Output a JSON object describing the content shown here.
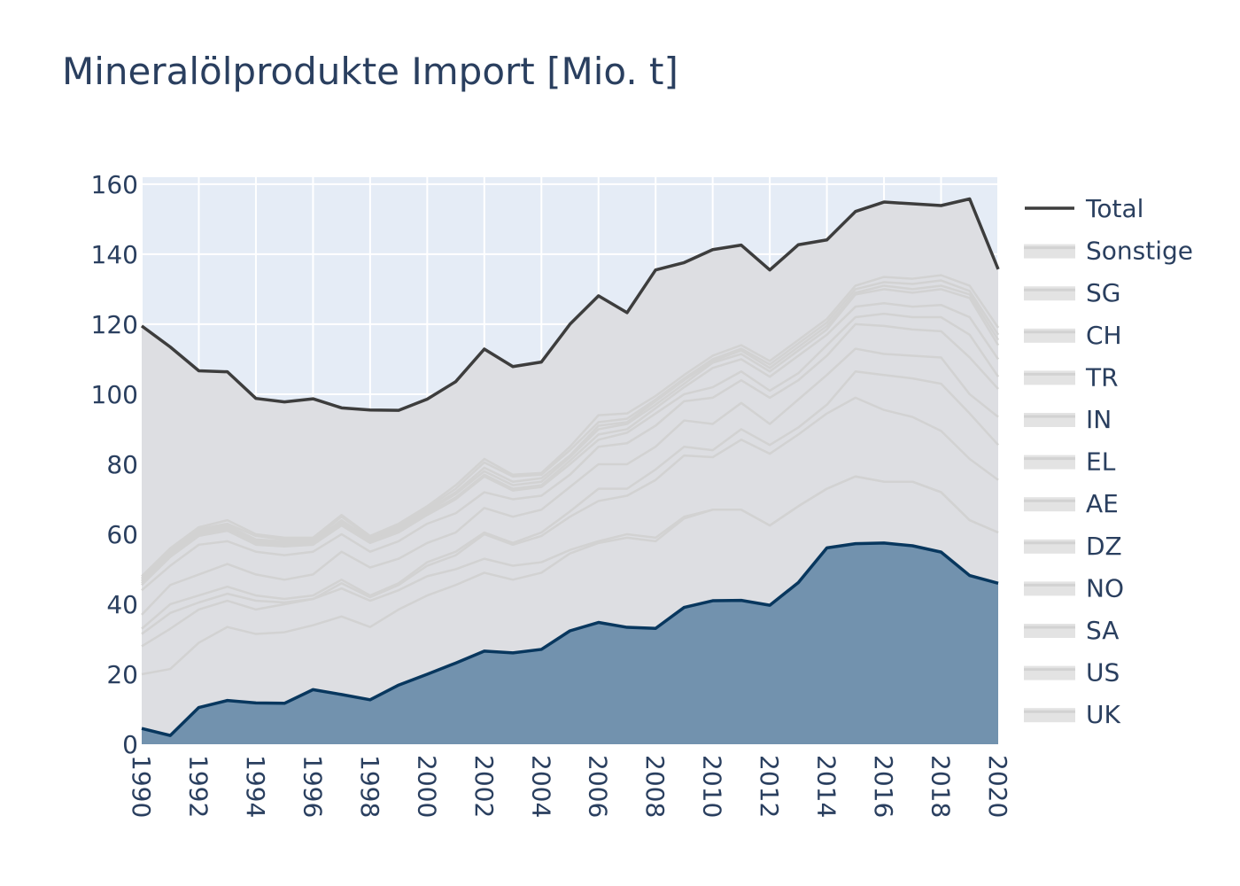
{
  "chart_data": {
    "type": "area",
    "title": "Mineralölprodukte Import [Mio. t]",
    "xlabel": "",
    "ylabel": "",
    "xlim": [
      1990,
      2020
    ],
    "ylim": [
      0,
      162
    ],
    "grid": true,
    "legend_position": "right",
    "x": [
      1990,
      1991,
      1992,
      1993,
      1994,
      1995,
      1996,
      1997,
      1998,
      1999,
      2000,
      2001,
      2002,
      2003,
      2004,
      2005,
      2006,
      2007,
      2008,
      2009,
      2010,
      2011,
      2012,
      2013,
      2014,
      2015,
      2016,
      2017,
      2018,
      2019,
      2020
    ],
    "x_tick_labels": [
      "1990",
      "1992",
      "1994",
      "1996",
      "1998",
      "2000",
      "2002",
      "2004",
      "2006",
      "2008",
      "2010",
      "2012",
      "2014",
      "2016",
      "2018",
      "2020"
    ],
    "y_tick_labels": [
      "0",
      "20",
      "40",
      "60",
      "80",
      "100",
      "120",
      "140",
      "160"
    ],
    "colors": {
      "total": "#3d3d3d",
      "uk_line": "#08375e",
      "uk_fill": "#7292ae",
      "stack_line": "#d2d2d2",
      "stack_fill": "#dddee2",
      "plot_bg": "#e5ecf6",
      "grid": "#ffffff"
    },
    "series": [
      {
        "name": "Total",
        "style": "line",
        "values": [
          119.5,
          113.5,
          106.7,
          106.4,
          98.8,
          97.8,
          98.7,
          96.1,
          95.5,
          95.4,
          98.6,
          103.6,
          112.9,
          107.9,
          109.2,
          120,
          128.1,
          123.3,
          135.5,
          137.6,
          141.3,
          142.6,
          135.5,
          142.7,
          144.1,
          152.2,
          154.9,
          154.4,
          153.9,
          155.8,
          135.7
        ]
      },
      {
        "name": "Sonstige",
        "style": "stacked",
        "values": [
          48,
          56,
          62,
          64,
          60,
          59,
          59,
          65.5,
          59.5,
          63,
          68,
          74,
          81.5,
          77,
          77.5,
          85,
          94,
          94.5,
          99.5,
          105.5,
          111,
          114,
          109.5,
          115.5,
          121.5,
          131,
          133.5,
          133,
          134,
          131,
          119
        ]
      },
      {
        "name": "SG",
        "style": "stacked",
        "values": [
          47.5,
          55.5,
          61.5,
          63,
          59.5,
          58.5,
          58.5,
          65,
          59,
          62.5,
          67.5,
          73,
          80.5,
          76.5,
          77,
          84,
          92,
          93,
          98.5,
          104.5,
          110,
          113,
          108.5,
          114.5,
          120.5,
          130,
          132,
          131.5,
          132.5,
          129.5,
          117
        ]
      },
      {
        "name": "CH",
        "style": "stacked",
        "values": [
          47,
          55,
          61,
          62.5,
          58.5,
          58,
          58,
          64,
          58.5,
          62,
          67,
          72,
          79,
          75,
          76,
          82.5,
          91,
          92,
          98,
          104,
          109.5,
          112.5,
          107.5,
          113.5,
          119.5,
          129,
          131,
          130,
          131,
          128.5,
          115.5
        ]
      },
      {
        "name": "TR",
        "style": "stacked",
        "values": [
          46.5,
          54.5,
          60.5,
          62,
          58,
          57.5,
          57.5,
          63.5,
          58,
          61.5,
          66.5,
          71.5,
          78,
          74,
          75,
          82,
          90,
          91.5,
          97,
          103,
          109,
          111.5,
          106.5,
          112.5,
          118.5,
          128.5,
          130,
          129,
          130,
          127.5,
          114
        ]
      },
      {
        "name": "IN",
        "style": "stacked",
        "values": [
          46,
          54,
          60,
          61.5,
          57.5,
          57,
          57.5,
          63,
          58,
          61,
          66,
          70.5,
          77,
          73,
          74,
          81,
          88.5,
          90,
          96,
          102,
          107.5,
          110,
          105,
          111,
          117,
          125,
          126,
          125,
          125.5,
          122,
          110
        ]
      },
      {
        "name": "EL",
        "style": "stacked",
        "values": [
          45.5,
          53.5,
          59.5,
          61,
          57,
          56.5,
          57,
          62.5,
          57.5,
          60.5,
          65.5,
          70,
          76.5,
          72.5,
          73.5,
          80,
          87,
          89,
          94.5,
          100,
          102,
          106.5,
          101,
          106,
          114,
          122,
          123,
          122,
          122,
          117,
          105
        ]
      },
      {
        "name": "AE",
        "style": "stacked",
        "values": [
          44,
          51,
          57,
          58,
          55,
          54,
          55,
          60,
          55,
          58,
          63,
          66,
          72,
          70,
          71,
          77,
          85,
          86,
          91,
          98,
          99,
          104,
          99,
          104,
          111,
          120,
          119.5,
          118.5,
          118,
          110.5,
          101.5
        ]
      },
      {
        "name": "DZ",
        "style": "stacked",
        "values": [
          37,
          45.5,
          48.5,
          51.5,
          48.5,
          47,
          48.5,
          55,
          50.5,
          53,
          57.5,
          60.5,
          67.5,
          65,
          67,
          73.5,
          80,
          80,
          85,
          92.5,
          91.5,
          97.5,
          91.5,
          98.5,
          105.5,
          113,
          111.5,
          111,
          110.5,
          100,
          93.5
        ]
      },
      {
        "name": "NO",
        "style": "stacked",
        "values": [
          33,
          40,
          42.5,
          45,
          42.5,
          41.5,
          42.5,
          47,
          42.5,
          46,
          52,
          55,
          60.5,
          57.5,
          60.5,
          66.5,
          73,
          73,
          78.5,
          85,
          84,
          90,
          85.5,
          90.5,
          97,
          106.5,
          105.5,
          104.5,
          103,
          94.5,
          85.5
        ]
      },
      {
        "name": "SA",
        "style": "stacked",
        "values": [
          31.5,
          37.5,
          40.5,
          43,
          41,
          40.5,
          41.5,
          46,
          42,
          45.5,
          51,
          54,
          60,
          57,
          59.5,
          65,
          69.5,
          71,
          75.5,
          82.5,
          82,
          87,
          83,
          88.5,
          94.5,
          99,
          95.5,
          93.5,
          89.5,
          81.5,
          75.5
        ]
      },
      {
        "name": "US",
        "style": "stacked",
        "values": [
          28,
          33,
          38.5,
          41,
          38.5,
          40,
          41.5,
          44.5,
          41,
          44,
          48,
          50,
          53,
          51,
          52,
          55.5,
          58,
          60,
          59,
          65,
          67,
          67,
          62.5,
          68,
          73,
          76.5,
          75,
          75,
          72,
          64,
          60.5
        ]
      },
      {
        "name": "UK",
        "style": "stacked",
        "values": [
          20,
          21.5,
          29,
          33.5,
          31.5,
          32,
          34,
          36.5,
          33.5,
          38.5,
          42.5,
          45.5,
          49,
          47,
          49,
          54.5,
          57.5,
          59,
          58,
          64.5,
          67,
          67,
          62.5,
          68,
          73,
          76.5,
          75,
          75,
          72,
          64,
          60.5
        ]
      },
      {
        "name": "",
        "style": "filled",
        "values": [
          4.5,
          2.5,
          10.5,
          12.5,
          11.8,
          11.7,
          15.6,
          14.2,
          12.7,
          16.9,
          20,
          23.2,
          26.6,
          26.1,
          27.1,
          32.4,
          34.8,
          33.4,
          33.1,
          39.1,
          41,
          41.1,
          39.7,
          46.2,
          56.1,
          57.3,
          57.5,
          56.7,
          54.9,
          48.2,
          46
        ]
      }
    ]
  }
}
